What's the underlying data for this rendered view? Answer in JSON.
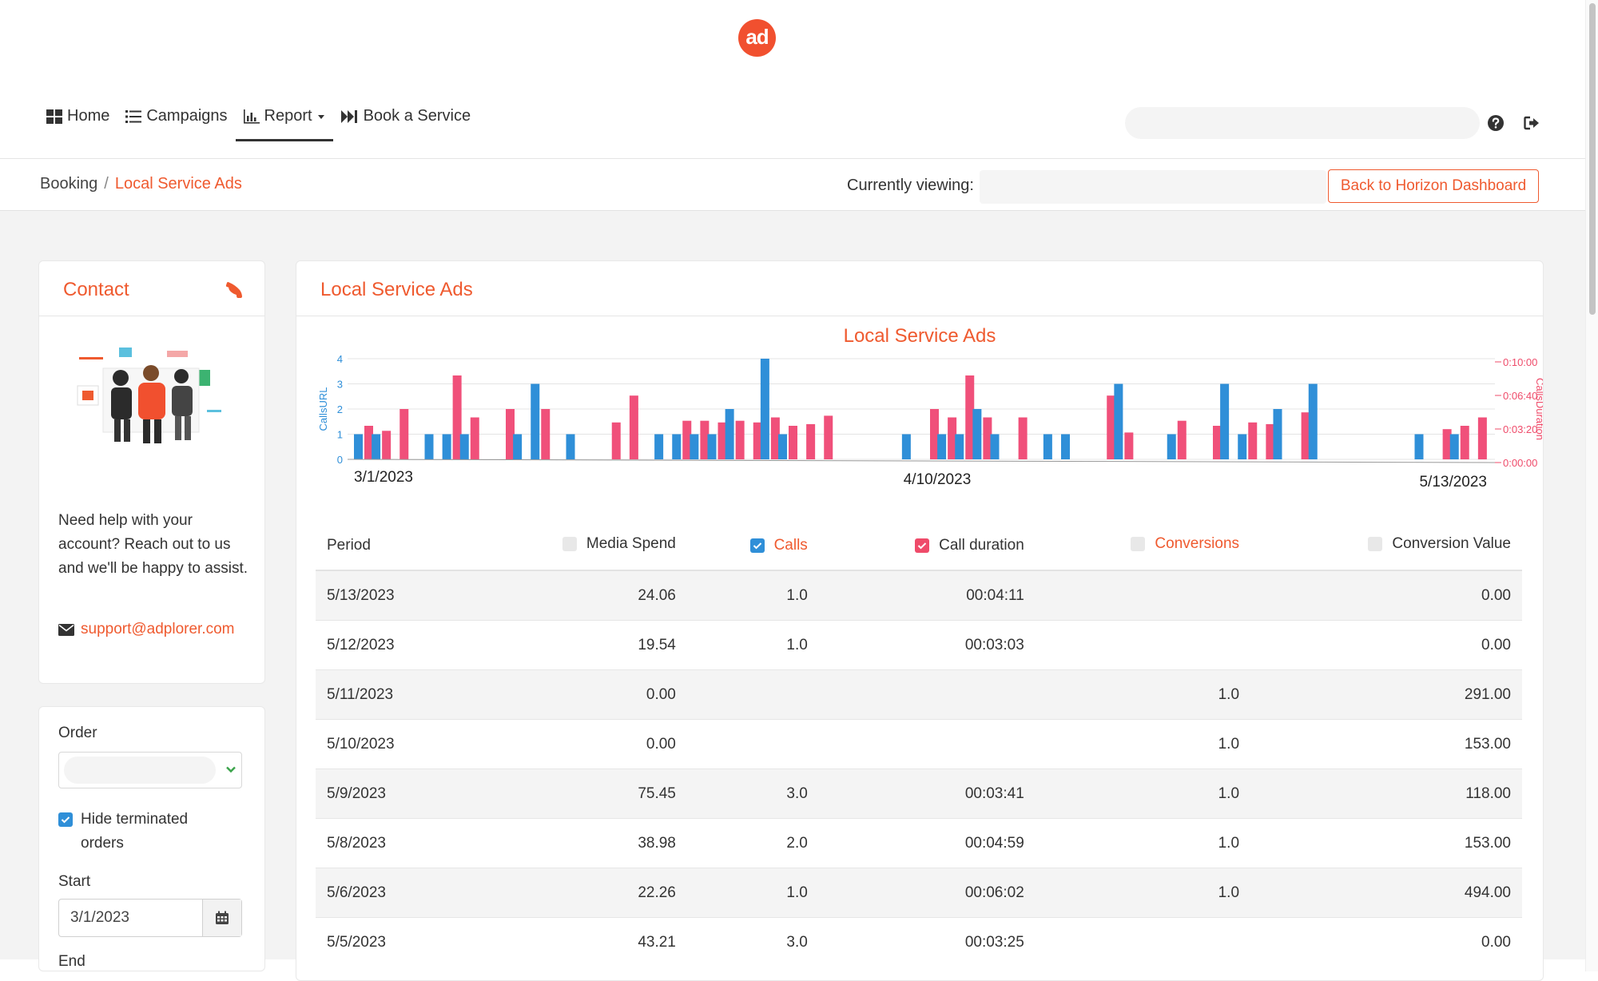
{
  "brand": {
    "logo_text": "ad",
    "color": "#f1502f"
  },
  "nav": {
    "items": [
      {
        "label": "Home",
        "icon": "grid-icon"
      },
      {
        "label": "Campaigns",
        "icon": "list-icon"
      },
      {
        "label": "Report",
        "icon": "bar-chart-icon",
        "active": true,
        "dropdown": true
      },
      {
        "label": "Book a Service",
        "icon": "fast-forward-icon"
      }
    ],
    "search_placeholder": ""
  },
  "breadcrumb": {
    "parent": "Booking",
    "separator": "/",
    "current": "Local Service Ads"
  },
  "viewing": {
    "label": "Currently viewing:",
    "value": ""
  },
  "back_button": "Back to Horizon Dashboard",
  "contact": {
    "title": "Contact",
    "help_text": "Need help with your account? Reach out to us and we'll be happy to assist.",
    "email": "support@adplorer.com"
  },
  "filters": {
    "order_label": "Order",
    "order_value": "",
    "hide_terminated_label": "Hide terminated orders",
    "hide_terminated_checked": true,
    "start_label": "Start",
    "start_value": "3/1/2023",
    "end_label": "End"
  },
  "report": {
    "title": "Local Service Ads",
    "chart_title": "Local Service Ads"
  },
  "chart_data": {
    "type": "bar",
    "title": "Local Service Ads",
    "x_labels": [
      "3/1/2023",
      "4/10/2023",
      "5/13/2023"
    ],
    "y_left_label": "CallsURL",
    "y_left_ticks": [
      "0",
      "1",
      "2",
      "3",
      "4"
    ],
    "y_left_range": [
      0,
      4
    ],
    "y_right_label": "CallsDuration",
    "y_right_ticks": [
      "0:00:00",
      "0:03:20",
      "0:06:40",
      "0:10:00"
    ],
    "y_right_range_seconds": [
      0,
      600
    ],
    "series": [
      {
        "name": "CallsURL",
        "color": "#2f8fd8",
        "values": [
          1,
          1,
          0,
          0,
          1,
          1,
          1,
          0,
          0,
          1,
          3,
          0,
          1,
          0,
          0,
          0,
          0,
          1,
          1,
          1,
          1,
          2,
          0,
          4,
          1,
          0,
          0,
          0,
          0,
          0,
          0,
          1,
          0,
          1,
          1,
          2,
          1,
          0,
          0,
          1,
          1,
          0,
          0,
          3,
          0,
          0,
          1,
          0,
          0,
          3,
          1,
          0,
          2,
          0,
          3,
          0,
          0,
          0,
          0,
          0,
          1,
          0,
          1,
          0
        ]
      },
      {
        "name": "CallsDuration",
        "color": "#f0507a",
        "values": [
          200,
          170,
          300,
          0,
          0,
          500,
          250,
          0,
          300,
          0,
          300,
          0,
          0,
          0,
          220,
          380,
          0,
          0,
          230,
          230,
          220,
          230,
          220,
          250,
          200,
          210,
          260,
          0,
          0,
          0,
          0,
          0,
          300,
          250,
          500,
          250,
          0,
          250,
          0,
          0,
          0,
          0,
          380,
          160,
          0,
          0,
          230,
          0,
          200,
          0,
          220,
          210,
          0,
          280,
          0,
          0,
          0,
          0,
          0,
          0,
          0,
          180,
          200,
          250
        ]
      }
    ]
  },
  "table": {
    "columns": [
      {
        "label": "Period",
        "checkbox": null,
        "highlight": false
      },
      {
        "label": "Media Spend",
        "checkbox": "empty",
        "highlight": false
      },
      {
        "label": "Calls",
        "checkbox": "blue",
        "highlight": true
      },
      {
        "label": "Call duration",
        "checkbox": "red",
        "highlight": false
      },
      {
        "label": "Conversions",
        "checkbox": "empty",
        "highlight": true
      },
      {
        "label": "Conversion Value",
        "checkbox": "empty",
        "highlight": false
      }
    ],
    "rows": [
      [
        "5/13/2023",
        "24.06",
        "1.0",
        "00:04:11",
        "",
        "0.00"
      ],
      [
        "5/12/2023",
        "19.54",
        "1.0",
        "00:03:03",
        "",
        "0.00"
      ],
      [
        "5/11/2023",
        "0.00",
        "",
        "",
        "1.0",
        "291.00"
      ],
      [
        "5/10/2023",
        "0.00",
        "",
        "",
        "1.0",
        "153.00"
      ],
      [
        "5/9/2023",
        "75.45",
        "3.0",
        "00:03:41",
        "1.0",
        "118.00"
      ],
      [
        "5/8/2023",
        "38.98",
        "2.0",
        "00:04:59",
        "1.0",
        "153.00"
      ],
      [
        "5/6/2023",
        "22.26",
        "1.0",
        "00:06:02",
        "1.0",
        "494.00"
      ],
      [
        "5/5/2023",
        "43.21",
        "3.0",
        "00:03:25",
        "",
        "0.00"
      ]
    ]
  }
}
